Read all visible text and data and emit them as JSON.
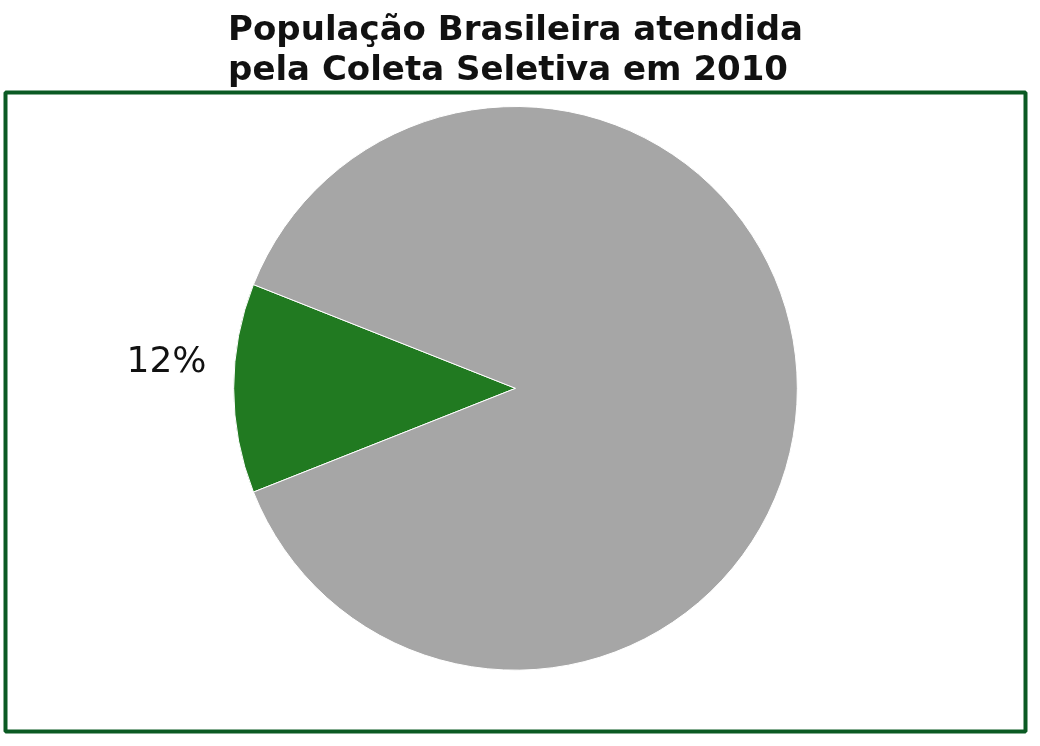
{
  "chart_data": {
    "type": "pie",
    "title": "População Brasileira atendida\npela Coleta Seletiva em 2010",
    "categories": [
      null,
      null
    ],
    "values": [
      12,
      88
    ],
    "colors": [
      "#217a21",
      "#a6a6a6"
    ],
    "value_labels": [
      "12%",
      null
    ]
  }
}
